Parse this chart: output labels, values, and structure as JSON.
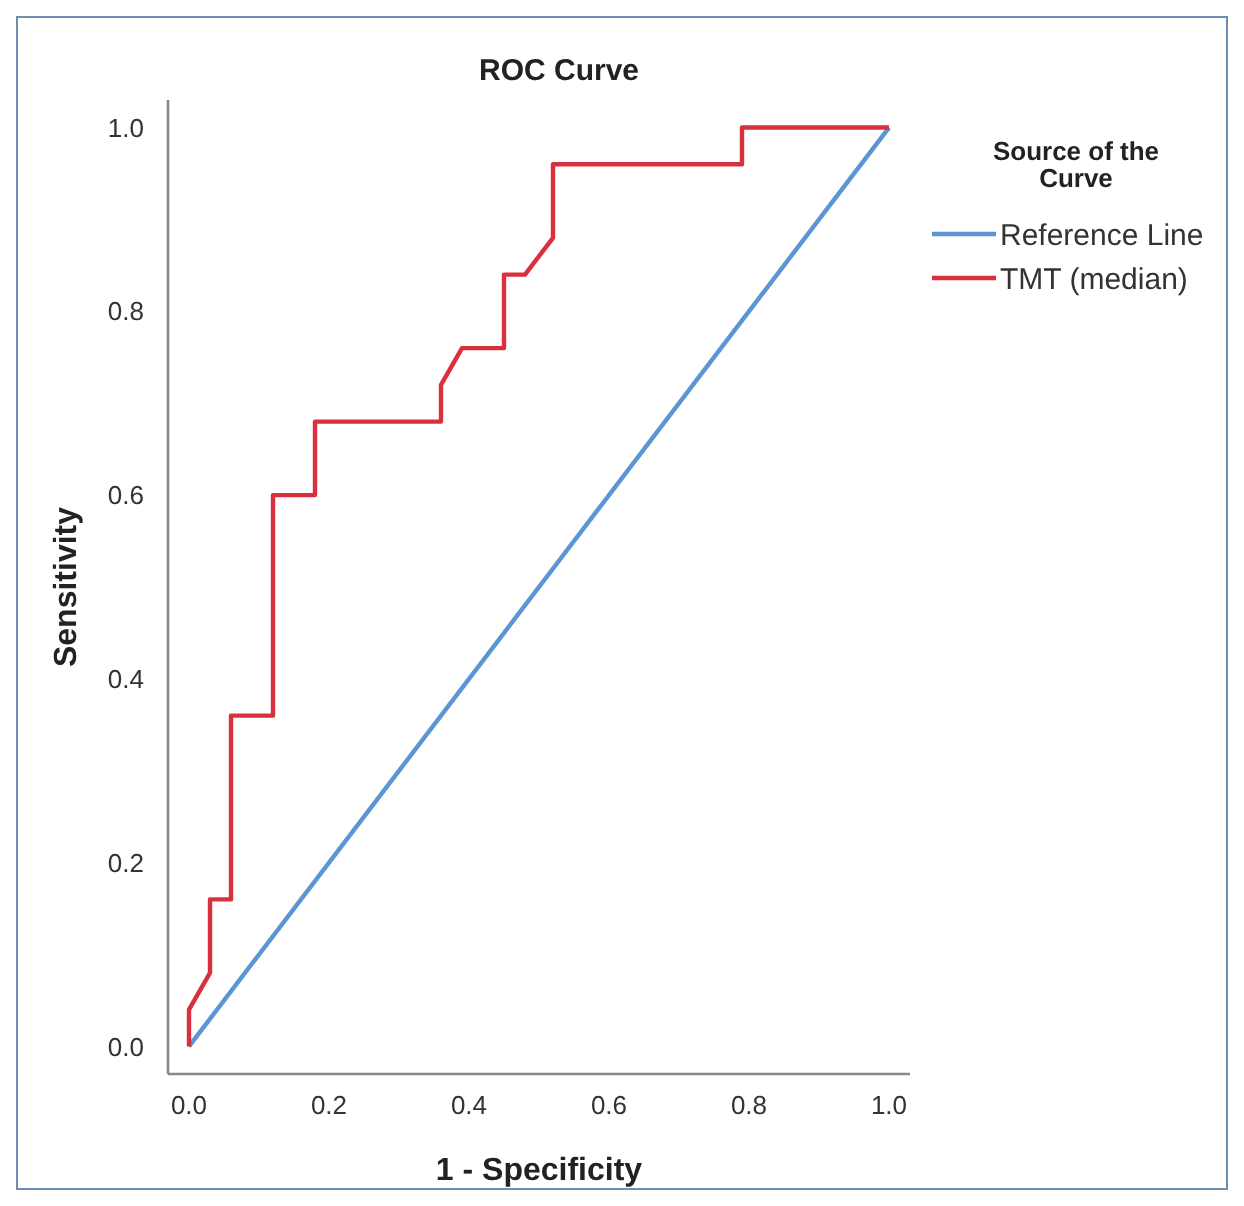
{
  "chart_data": {
    "type": "line",
    "title": "ROC Curve",
    "xlabel": "1 - Specificity",
    "ylabel": "Sensitivity",
    "legend_title": "Source of the Curve",
    "legend": "top right",
    "grid": false,
    "marker": "none",
    "line_style": "solid",
    "xlim": [
      -0.03,
      1.03
    ],
    "ylim": [
      -0.03,
      1.03
    ],
    "xticks": [
      {
        "value": 0,
        "label": "0.0"
      },
      {
        "value": 0.2,
        "label": "0.2"
      },
      {
        "value": 0.4,
        "label": "0.4"
      },
      {
        "value": 0.6,
        "label": "0.6"
      },
      {
        "value": 0.8,
        "label": "0.8"
      },
      {
        "value": 1,
        "label": "1.0"
      }
    ],
    "yticks": [
      {
        "value": 0,
        "label": "0.0"
      },
      {
        "value": 0.2,
        "label": "0.2"
      },
      {
        "value": 0.4,
        "label": "0.4"
      },
      {
        "value": 0.6,
        "label": "0.6"
      },
      {
        "value": 0.8,
        "label": "0.8"
      },
      {
        "value": 1,
        "label": "1.0"
      }
    ],
    "series": [
      {
        "name": "Reference Line",
        "color": "#5b95d4",
        "x": [
          0,
          1
        ],
        "values": [
          0,
          1
        ]
      },
      {
        "name": "TMT (median)",
        "color": "#d9303e",
        "x": [
          0,
          0,
          0.03,
          0.03,
          0.06,
          0.06,
          0.12,
          0.12,
          0.18,
          0.18,
          0.36,
          0.36,
          0.39,
          0.45,
          0.45,
          0.48,
          0.52,
          0.52,
          0.79,
          0.79,
          1
        ],
        "values": [
          0,
          0.04,
          0.08,
          0.16,
          0.16,
          0.36,
          0.36,
          0.6,
          0.6,
          0.68,
          0.68,
          0.72,
          0.76,
          0.76,
          0.84,
          0.84,
          0.88,
          0.96,
          0.96,
          1,
          1
        ]
      }
    ]
  }
}
